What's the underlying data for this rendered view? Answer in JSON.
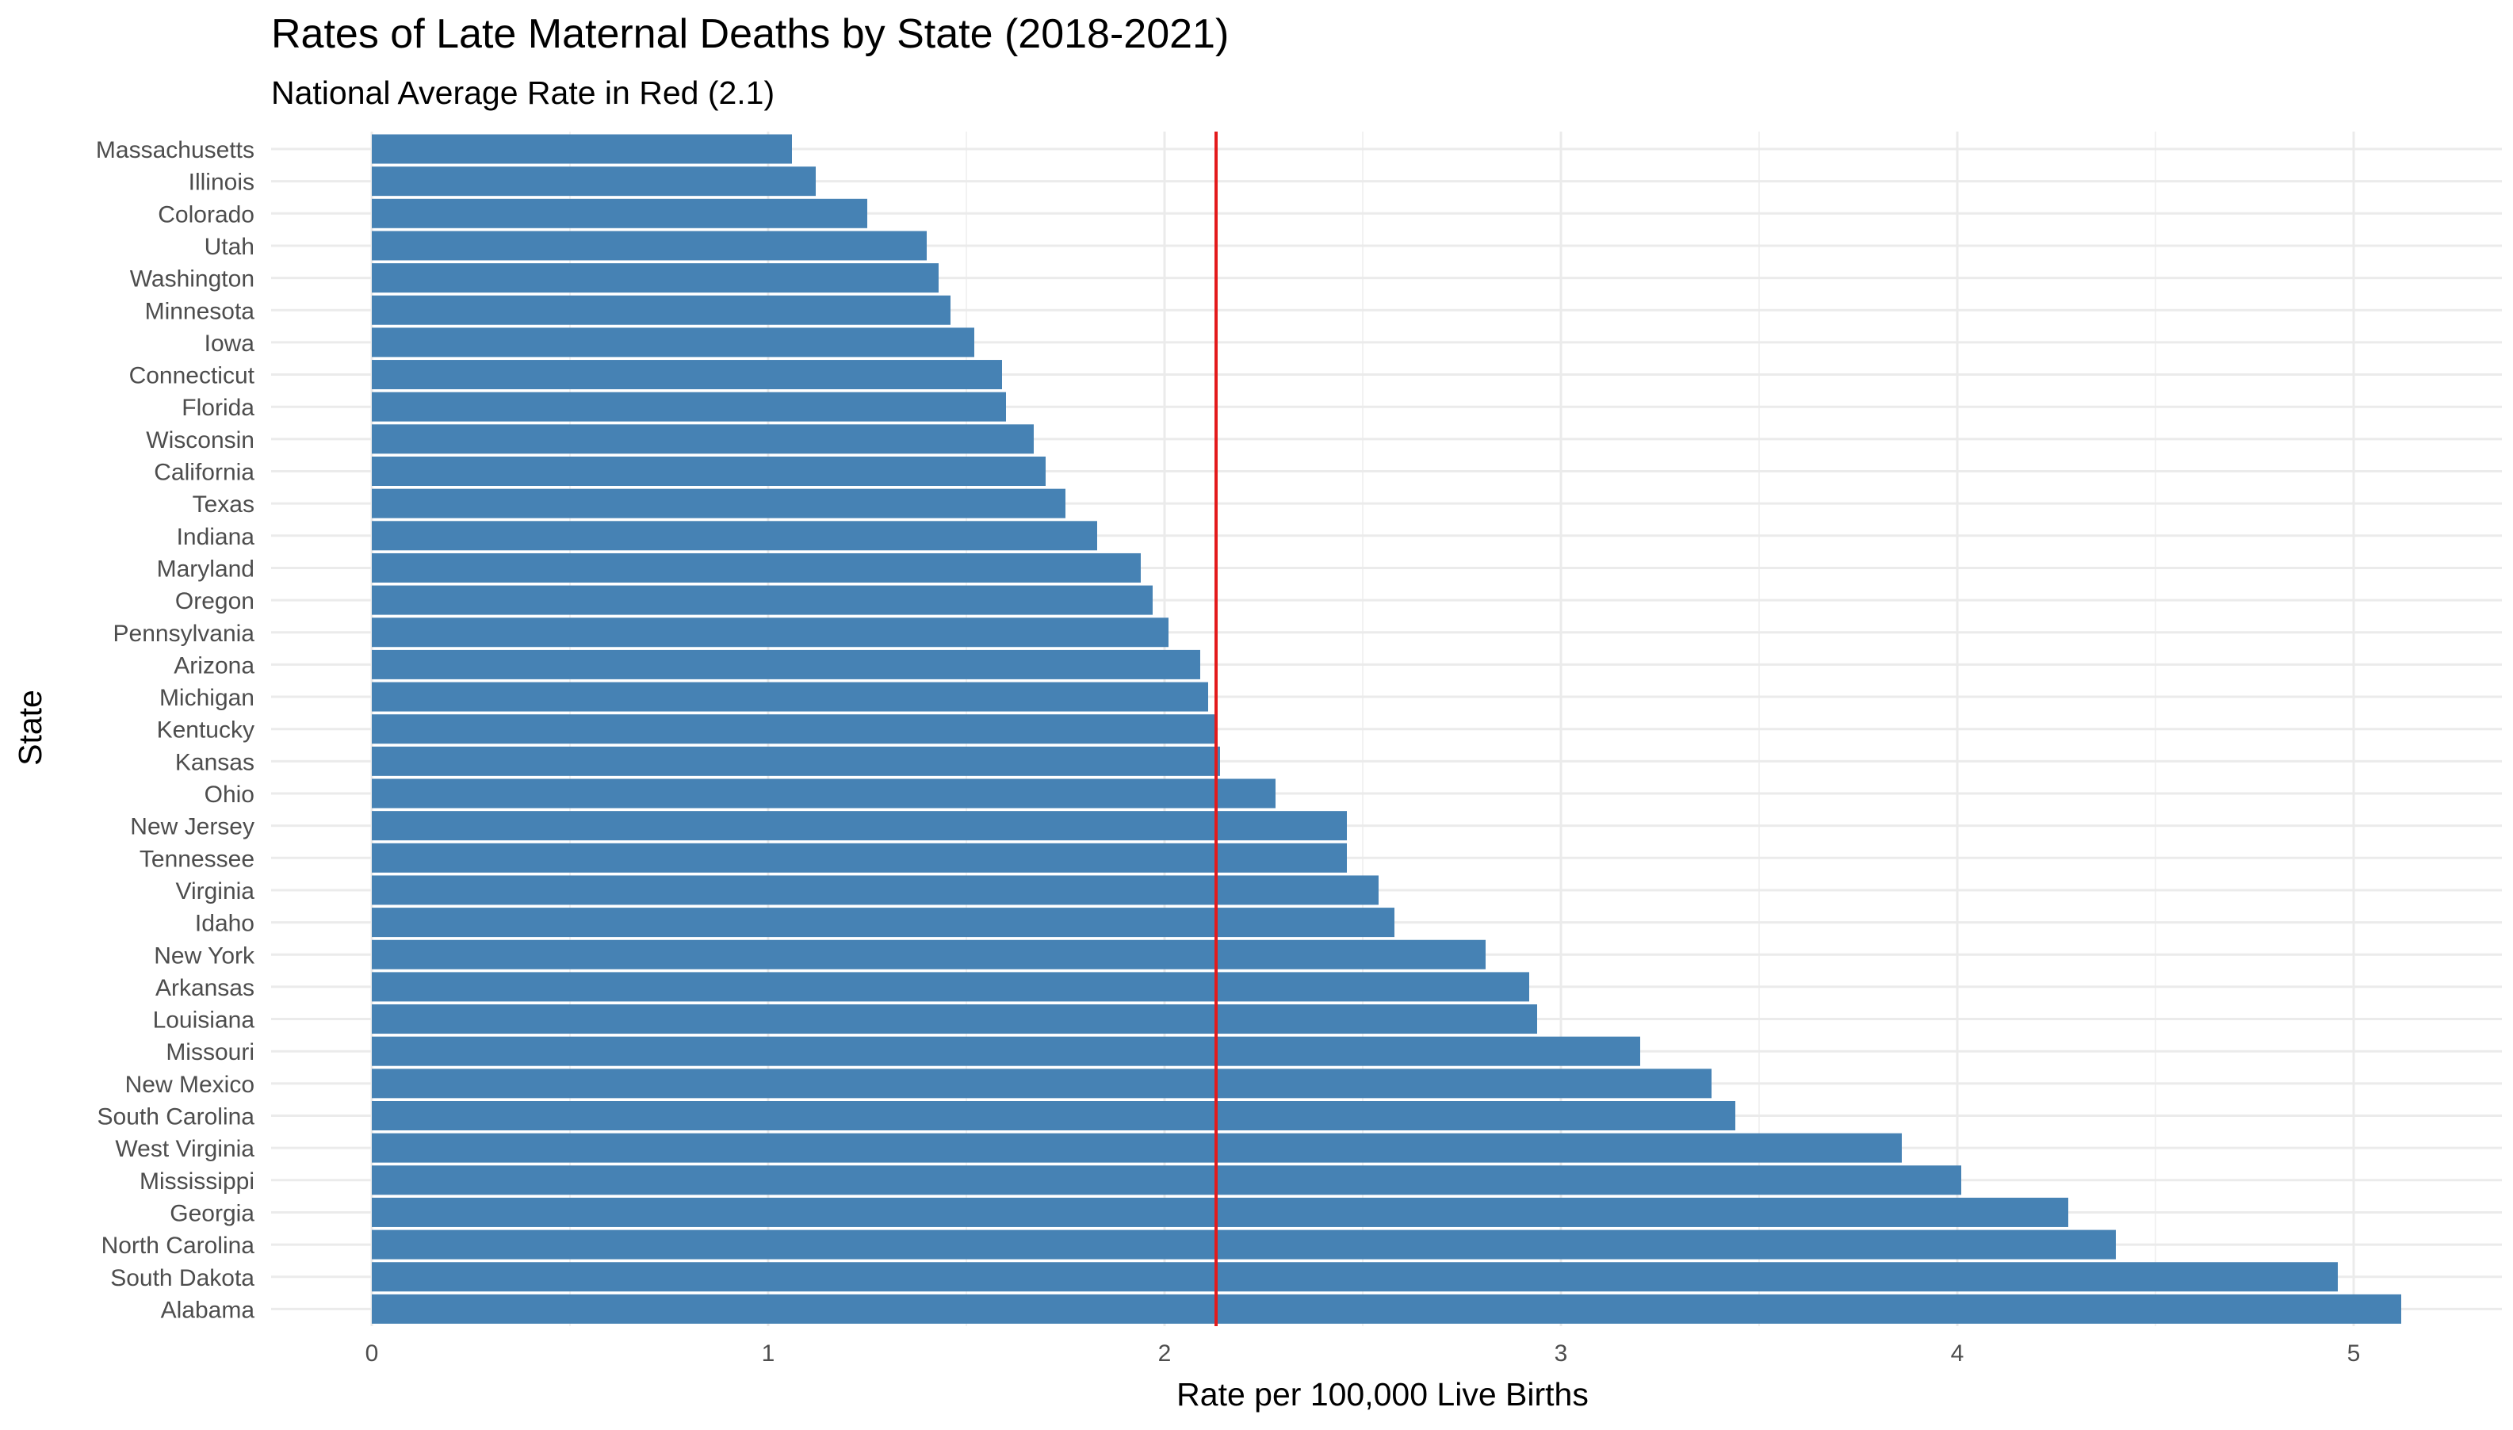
{
  "chart_data": {
    "type": "bar",
    "orientation": "horizontal",
    "title": "Rates of Late Maternal Deaths by State (2018-2021)",
    "subtitle": "National Average Rate in Red (2.1)",
    "xlabel": "Rate per 100,000 Live Births",
    "ylabel": "State",
    "xlim": [
      0,
      5.25
    ],
    "x_ticks": [
      0,
      1,
      2,
      3,
      4,
      5
    ],
    "grid": true,
    "bar_color": "#4682b4",
    "reference_line": {
      "value": 2.13,
      "color": "#e31a1c"
    },
    "categories": [
      "Massachusetts",
      "Illinois",
      "Colorado",
      "Utah",
      "Washington",
      "Minnesota",
      "Iowa",
      "Connecticut",
      "Florida",
      "Wisconsin",
      "California",
      "Texas",
      "Indiana",
      "Maryland",
      "Oregon",
      "Pennsylvania",
      "Arizona",
      "Michigan",
      "Kentucky",
      "Kansas",
      "Ohio",
      "New Jersey",
      "Tennessee",
      "Virginia",
      "Idaho",
      "New York",
      "Arkansas",
      "Louisiana",
      "Missouri",
      "New Mexico",
      "South Carolina",
      "West Virginia",
      "Mississippi",
      "Georgia",
      "North Carolina",
      "South Dakota",
      "Alabama"
    ],
    "values": [
      1.06,
      1.12,
      1.25,
      1.4,
      1.43,
      1.46,
      1.52,
      1.59,
      1.6,
      1.67,
      1.7,
      1.75,
      1.83,
      1.94,
      1.97,
      2.01,
      2.09,
      2.11,
      2.13,
      2.14,
      2.28,
      2.46,
      2.46,
      2.54,
      2.58,
      2.81,
      2.92,
      2.94,
      3.2,
      3.38,
      3.44,
      3.86,
      4.01,
      4.28,
      4.4,
      4.96,
      5.12
    ]
  }
}
